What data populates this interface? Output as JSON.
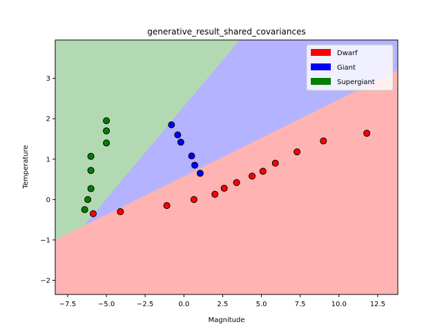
{
  "chart_data": {
    "type": "scatter",
    "title": "generative_result_shared_covariances",
    "xlabel": "Magnitude",
    "ylabel": "Temperature",
    "xlim": [
      -8.3,
      13.8
    ],
    "ylim": [
      -2.35,
      3.95
    ],
    "xticks": [
      -7.5,
      -5.0,
      -2.5,
      0.0,
      2.5,
      5.0,
      7.5,
      10.0,
      12.5
    ],
    "xtick_labels": [
      "−7.5",
      "−5.0",
      "−2.5",
      "0.0",
      "2.5",
      "5.0",
      "7.5",
      "10.0",
      "12.5"
    ],
    "yticks": [
      -2,
      -1,
      0,
      1,
      2,
      3
    ],
    "ytick_labels": [
      "−2",
      "−1",
      "0",
      "1",
      "2",
      "3"
    ],
    "legend_position": "top-right",
    "regions": {
      "description_colors": {
        "Dwarf": "#ffb3b3",
        "Giant": "#b3b3ff",
        "Supergiant": "#b3d9b3"
      },
      "dwarf_giant_boundary": [
        [
          -8.3,
          -1.0
        ],
        [
          13.8,
          3.2
        ]
      ],
      "giant_supergiant_boundary": [
        [
          -5.7,
          -0.3
        ],
        [
          3.6,
          3.95
        ]
      ]
    },
    "series": [
      {
        "name": "Dwarf",
        "color": "#ff0000",
        "points": [
          [
            -5.85,
            -0.35
          ],
          [
            -4.1,
            -0.3
          ],
          [
            -1.1,
            -0.15
          ],
          [
            0.65,
            0.0
          ],
          [
            2.0,
            0.13
          ],
          [
            2.6,
            0.28
          ],
          [
            3.4,
            0.42
          ],
          [
            4.4,
            0.58
          ],
          [
            5.1,
            0.7
          ],
          [
            5.9,
            0.9
          ],
          [
            7.3,
            1.18
          ],
          [
            9.0,
            1.45
          ],
          [
            11.8,
            1.64
          ]
        ]
      },
      {
        "name": "Giant",
        "color": "#0000ff",
        "points": [
          [
            -0.8,
            1.85
          ],
          [
            -0.4,
            1.6
          ],
          [
            -0.2,
            1.42
          ],
          [
            0.5,
            1.08
          ],
          [
            0.7,
            0.85
          ],
          [
            1.05,
            0.65
          ]
        ]
      },
      {
        "name": "Supergiant",
        "color": "#008000",
        "points": [
          [
            -5.0,
            1.95
          ],
          [
            -5.0,
            1.7
          ],
          [
            -5.0,
            1.4
          ],
          [
            -6.0,
            1.07
          ],
          [
            -6.0,
            0.72
          ],
          [
            -6.0,
            0.27
          ],
          [
            -6.2,
            0.0
          ],
          [
            -6.4,
            -0.25
          ]
        ]
      }
    ]
  }
}
